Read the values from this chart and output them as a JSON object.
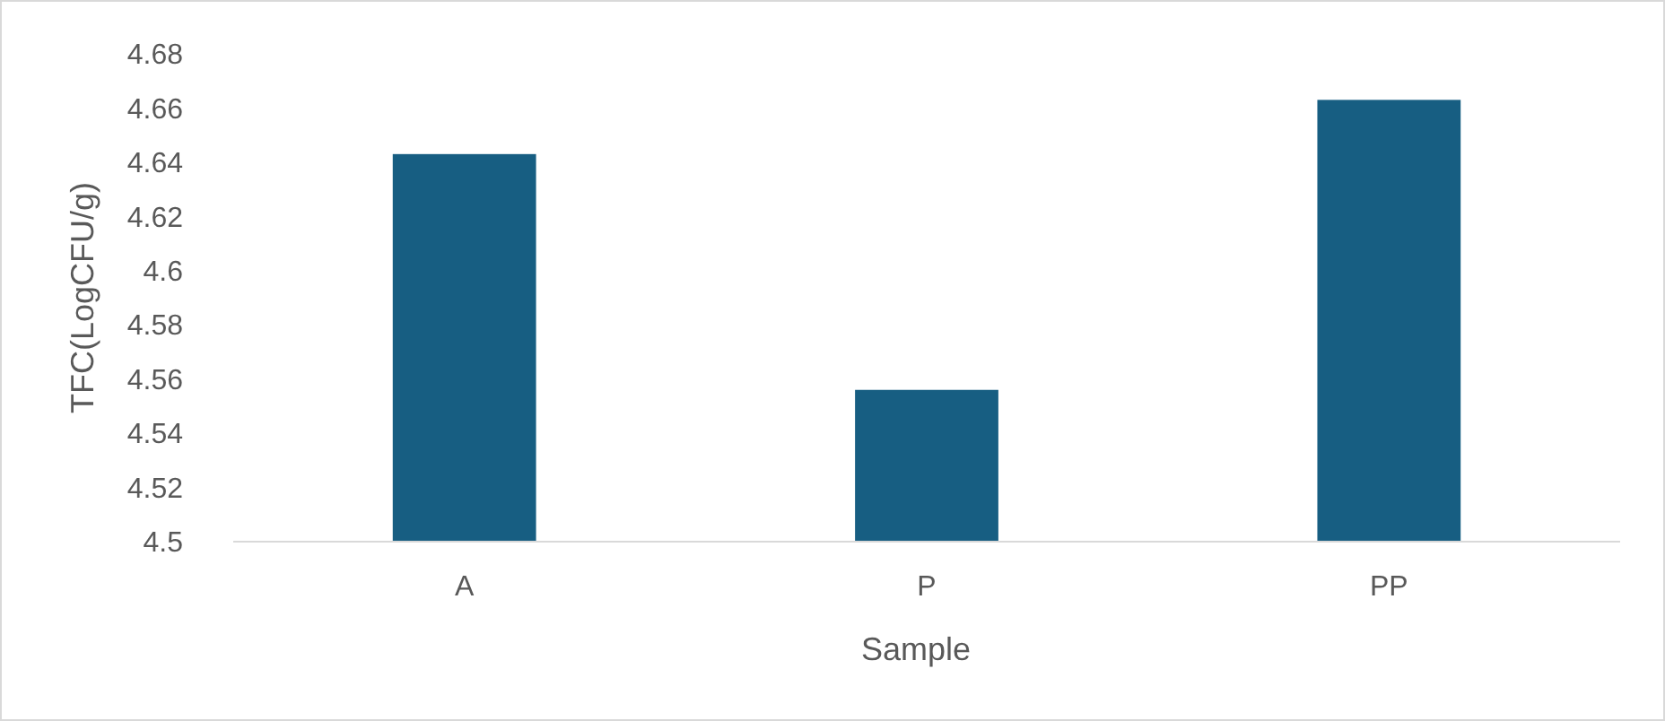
{
  "chart_data": {
    "type": "bar",
    "xlabel": "Sample",
    "ylabel": "TFC(LogCFU/g)",
    "categories": [
      "A",
      "P",
      "PP"
    ],
    "values": [
      4.643,
      4.556,
      4.663
    ],
    "color": "#175e82",
    "ylim": [
      4.5,
      4.68
    ],
    "yticks": [
      4.5,
      4.52,
      4.54,
      4.56,
      4.58,
      4.6,
      4.62,
      4.64,
      4.66,
      4.68
    ],
    "grid": false
  }
}
